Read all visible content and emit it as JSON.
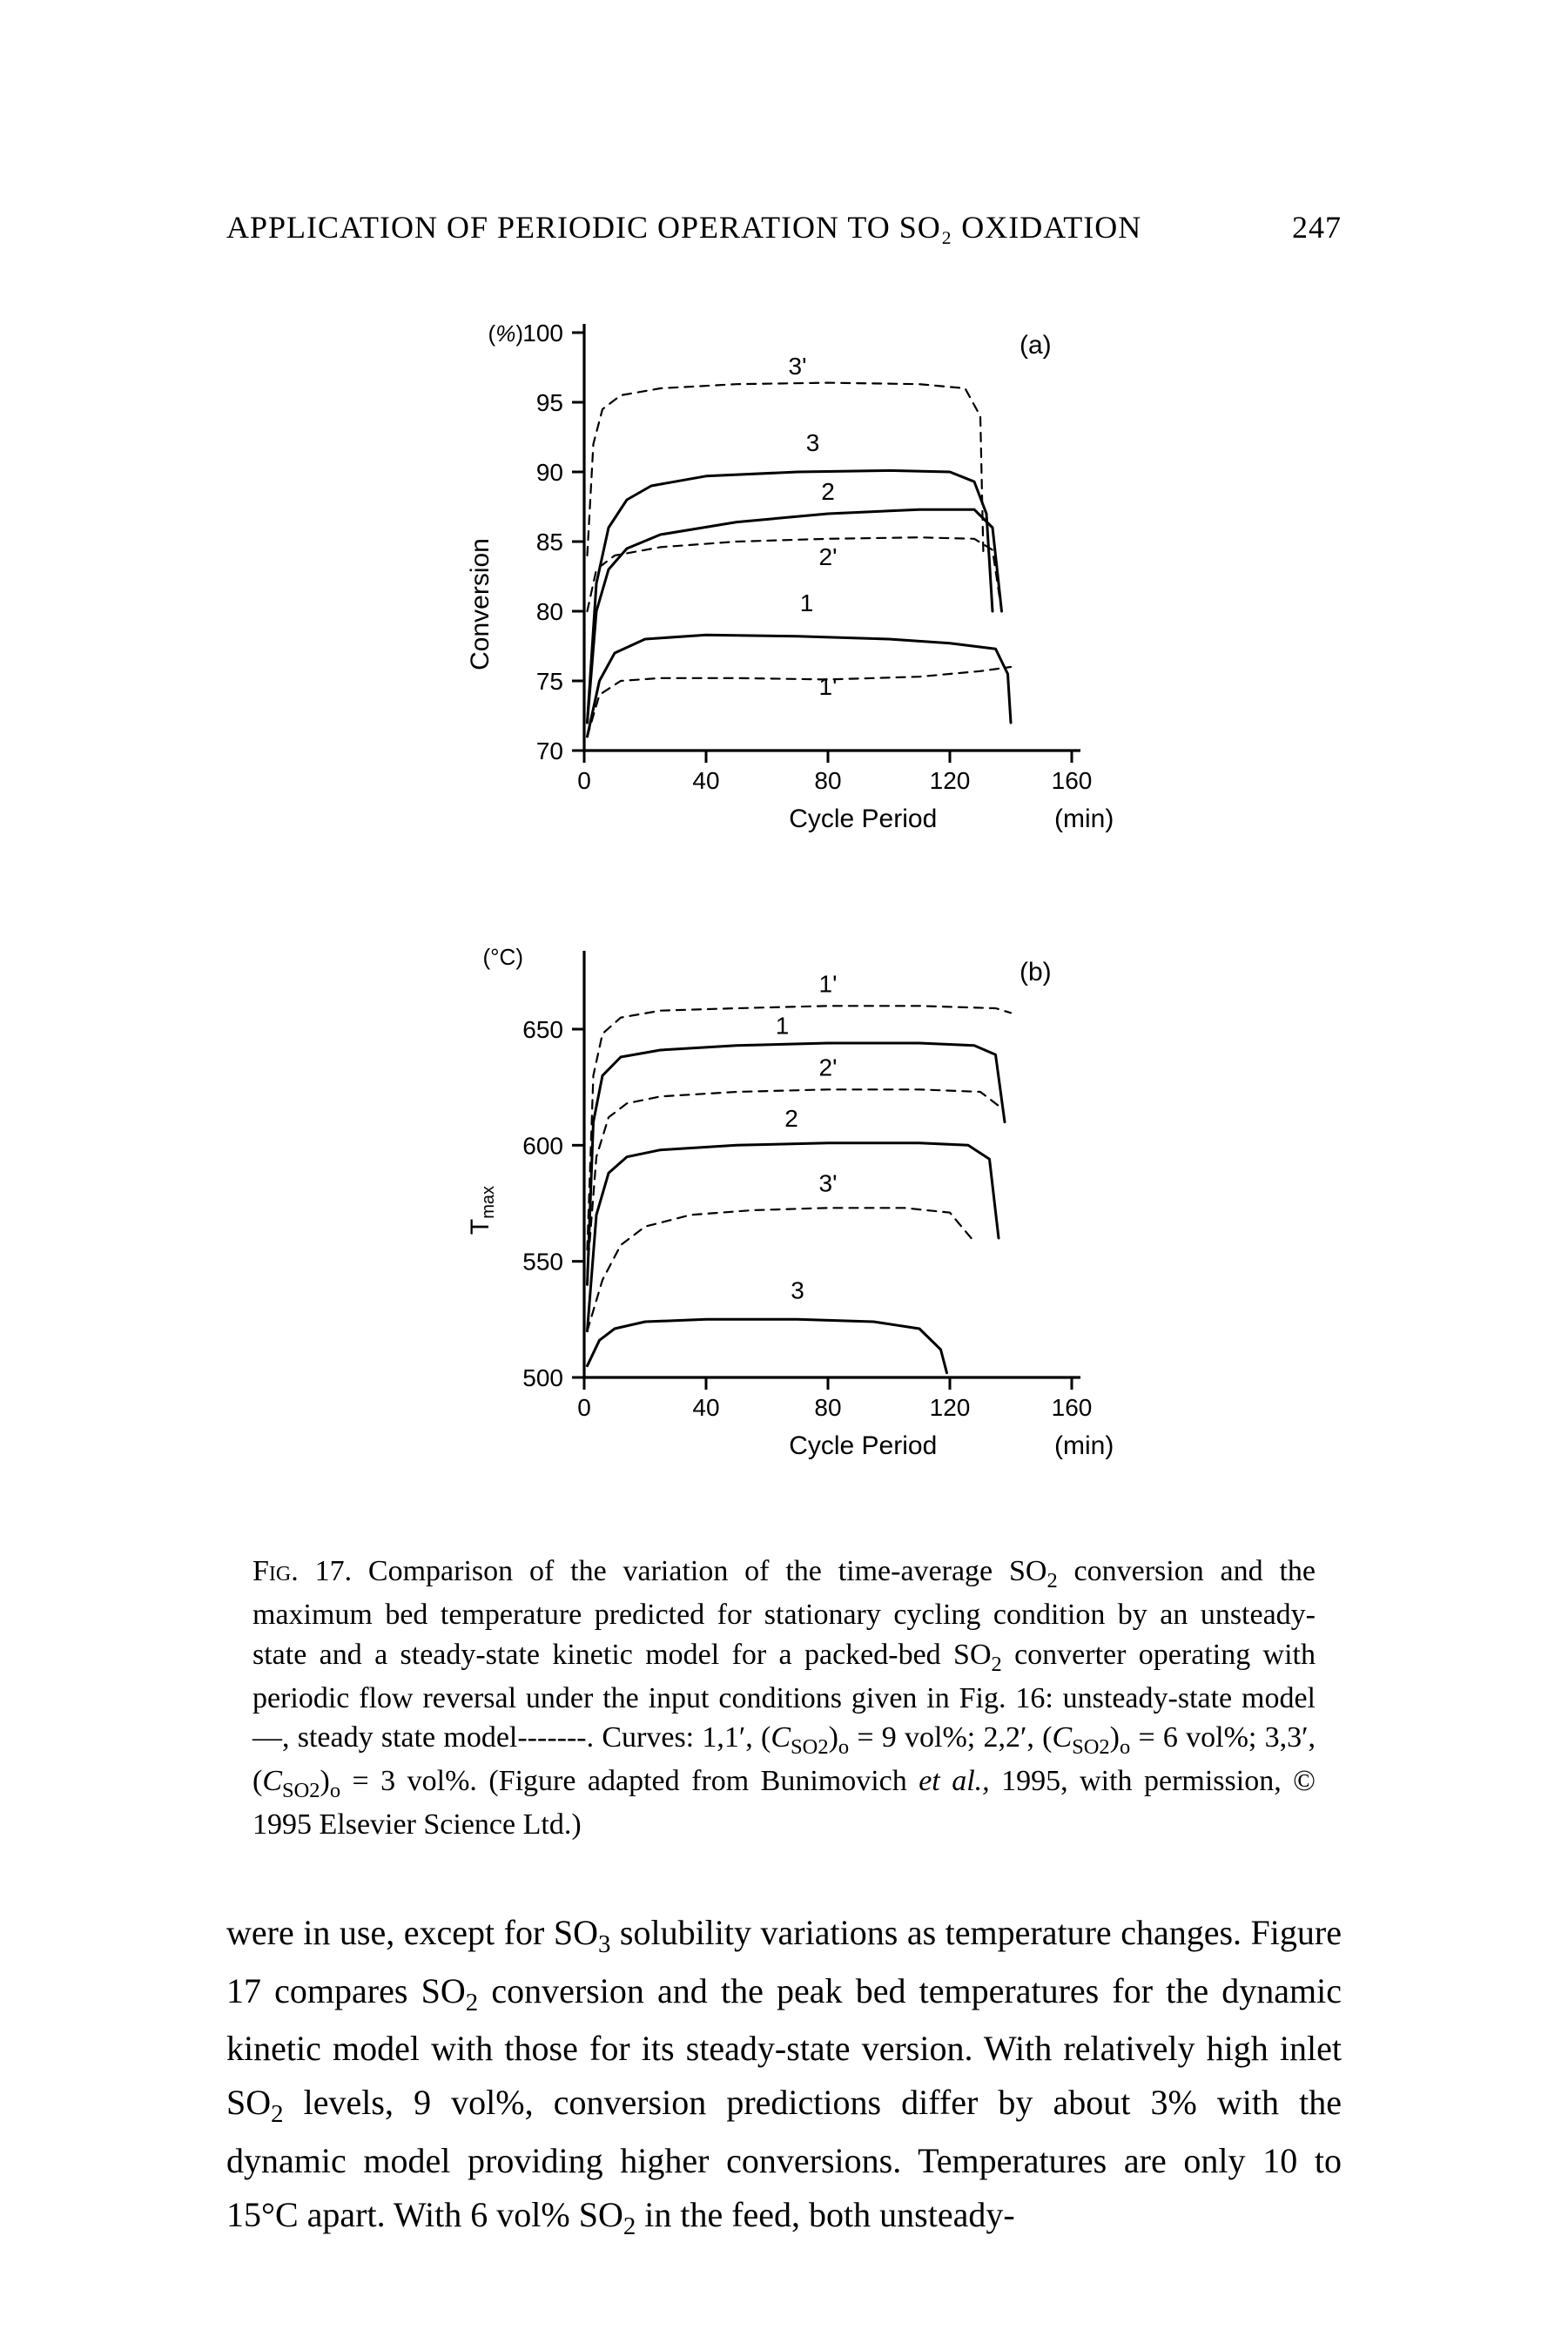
{
  "header": {
    "title": "APPLICATION OF PERIODIC OPERATION TO SO₂ OXIDATION",
    "page_number": "247"
  },
  "figure": {
    "chart_a": {
      "type": "line",
      "panel_label": "(a)",
      "ylabel_main": "Conversion",
      "ylabel_unit": "(%)",
      "xlabel_main": "Cycle Period",
      "xlabel_unit": "(min)",
      "xlim": [
        0,
        160
      ],
      "ylim": [
        70,
        100
      ],
      "xticks": [
        0,
        40,
        80,
        120,
        160
      ],
      "yticks": [
        70,
        75,
        80,
        85,
        90,
        95,
        100
      ],
      "line_color": "#000000",
      "background_color": "#ffffff",
      "solid_width": 3.0,
      "dashed_width": 2.2,
      "dash_pattern": "10 8",
      "label_fontsize": 28,
      "tick_fontsize": 28,
      "series": [
        {
          "name": "3'",
          "style": "dashed",
          "label_at": [
            70,
            97
          ],
          "points": [
            [
              1,
              84
            ],
            [
              3,
              92
            ],
            [
              6,
              94.5
            ],
            [
              12,
              95.5
            ],
            [
              25,
              96
            ],
            [
              50,
              96.3
            ],
            [
              80,
              96.4
            ],
            [
              110,
              96.3
            ],
            [
              125,
              96.0
            ],
            [
              130,
              94
            ],
            [
              131,
              84
            ]
          ]
        },
        {
          "name": "3",
          "style": "solid",
          "label_at": [
            75,
            91.5
          ],
          "points": [
            [
              1,
              72
            ],
            [
              4,
              82
            ],
            [
              8,
              86
            ],
            [
              14,
              88
            ],
            [
              22,
              89
            ],
            [
              40,
              89.7
            ],
            [
              70,
              90
            ],
            [
              100,
              90.1
            ],
            [
              120,
              90
            ],
            [
              128,
              89.3
            ],
            [
              132,
              87
            ],
            [
              134,
              80
            ]
          ]
        },
        {
          "name": "2",
          "style": "solid",
          "label_at": [
            80,
            88
          ],
          "points": [
            [
              1,
              72
            ],
            [
              4,
              80
            ],
            [
              8,
              83
            ],
            [
              14,
              84.5
            ],
            [
              25,
              85.5
            ],
            [
              50,
              86.4
            ],
            [
              80,
              87
            ],
            [
              110,
              87.3
            ],
            [
              128,
              87.3
            ],
            [
              134,
              86
            ],
            [
              137,
              80
            ]
          ]
        },
        {
          "name": "2'",
          "style": "dashed",
          "label_at": [
            80,
            83.3
          ],
          "points": [
            [
              1,
              80
            ],
            [
              4,
              83
            ],
            [
              10,
              84
            ],
            [
              25,
              84.6
            ],
            [
              50,
              85
            ],
            [
              80,
              85.2
            ],
            [
              110,
              85.3
            ],
            [
              128,
              85.2
            ],
            [
              134,
              84.4
            ],
            [
              137,
              80
            ]
          ]
        },
        {
          "name": "1",
          "style": "solid",
          "label_at": [
            73,
            80
          ],
          "points": [
            [
              1,
              71
            ],
            [
              5,
              75
            ],
            [
              10,
              77
            ],
            [
              20,
              78
            ],
            [
              40,
              78.3
            ],
            [
              70,
              78.2
            ],
            [
              100,
              78
            ],
            [
              120,
              77.7
            ],
            [
              135,
              77.3
            ],
            [
              139,
              75.5
            ],
            [
              140,
              72
            ]
          ]
        },
        {
          "name": "1'",
          "style": "dashed",
          "label_at": [
            80,
            74
          ],
          "points": [
            [
              1,
              71
            ],
            [
              5,
              74
            ],
            [
              12,
              75
            ],
            [
              25,
              75.2
            ],
            [
              50,
              75.2
            ],
            [
              80,
              75.1
            ],
            [
              110,
              75.3
            ],
            [
              130,
              75.7
            ],
            [
              140,
              76
            ]
          ]
        }
      ]
    },
    "chart_b": {
      "type": "line",
      "panel_label": "(b)",
      "ylabel_main": "T",
      "ylabel_sub": "max",
      "ylabel_unit": "(°C)",
      "xlabel_main": "Cycle Period",
      "xlabel_unit": "(min)",
      "xlim": [
        0,
        160
      ],
      "ylim": [
        500,
        680
      ],
      "xticks": [
        0,
        40,
        80,
        120,
        160
      ],
      "yticks": [
        500,
        550,
        600,
        650
      ],
      "line_color": "#000000",
      "background_color": "#ffffff",
      "solid_width": 3.0,
      "dashed_width": 2.2,
      "dash_pattern": "10 8",
      "label_fontsize": 28,
      "tick_fontsize": 28,
      "series": [
        {
          "name": "1'",
          "style": "dashed",
          "label_at": [
            80,
            666
          ],
          "points": [
            [
              1,
              555
            ],
            [
              3,
              630
            ],
            [
              6,
              648
            ],
            [
              12,
              655
            ],
            [
              25,
              658
            ],
            [
              50,
              659
            ],
            [
              80,
              660
            ],
            [
              110,
              660
            ],
            [
              135,
              659
            ],
            [
              140,
              657
            ]
          ]
        },
        {
          "name": "1",
          "style": "solid",
          "label_at": [
            65,
            648
          ],
          "points": [
            [
              1,
              540
            ],
            [
              3,
              610
            ],
            [
              6,
              630
            ],
            [
              12,
              638
            ],
            [
              25,
              641
            ],
            [
              50,
              643
            ],
            [
              80,
              644
            ],
            [
              110,
              644
            ],
            [
              128,
              643
            ],
            [
              135,
              639
            ],
            [
              138,
              610
            ]
          ]
        },
        {
          "name": "2'",
          "style": "dashed",
          "label_at": [
            80,
            630
          ],
          "points": [
            [
              1,
              545
            ],
            [
              4,
              595
            ],
            [
              8,
              612
            ],
            [
              14,
              618
            ],
            [
              25,
              621
            ],
            [
              50,
              623
            ],
            [
              80,
              624
            ],
            [
              110,
              624
            ],
            [
              130,
              623
            ],
            [
              137,
              616
            ]
          ]
        },
        {
          "name": "2",
          "style": "solid",
          "label_at": [
            68,
            608
          ],
          "points": [
            [
              1,
              520
            ],
            [
              4,
              570
            ],
            [
              8,
              588
            ],
            [
              14,
              595
            ],
            [
              25,
              598
            ],
            [
              50,
              600
            ],
            [
              80,
              601
            ],
            [
              110,
              601
            ],
            [
              126,
              600
            ],
            [
              133,
              594
            ],
            [
              136,
              560
            ]
          ]
        },
        {
          "name": "3'",
          "style": "dashed",
          "label_at": [
            80,
            580
          ],
          "points": [
            [
              1,
              520
            ],
            [
              6,
              542
            ],
            [
              12,
              557
            ],
            [
              20,
              565
            ],
            [
              35,
              570
            ],
            [
              55,
              572
            ],
            [
              80,
              573
            ],
            [
              105,
              573
            ],
            [
              120,
              571
            ],
            [
              127,
              560
            ]
          ]
        },
        {
          "name": "3",
          "style": "solid",
          "label_at": [
            70,
            534
          ],
          "points": [
            [
              1,
              505
            ],
            [
              5,
              516
            ],
            [
              10,
              521
            ],
            [
              20,
              524
            ],
            [
              40,
              525
            ],
            [
              70,
              525
            ],
            [
              95,
              524
            ],
            [
              110,
              521
            ],
            [
              117,
              512
            ],
            [
              119,
              502
            ]
          ]
        }
      ]
    }
  },
  "caption": {
    "lead": "Fig. 17.",
    "text_parts": {
      "p1": "Comparison of the variation of the time-average SO",
      "p1sub": "2",
      "p2": " conversion and the maximum bed temperature predicted for stationary cycling condition by an unsteady-state and a steady-state kinetic model for a packed-bed SO",
      "p2sub": "2",
      "p3": " converter operating with periodic flow reversal under the input conditions given in Fig. 16: unsteady-state model—, steady state model-------. Curves: 1,1′, (",
      "c1": "C",
      "c1sub": "SO2",
      "p4": ")",
      "p4sub": "o",
      "p5": " = 9 vol%; 2,2′, (",
      "c2": "C",
      "c2sub": "SO2",
      "p6": ")",
      "p6sub": "o",
      "p7": " = 6 vol%; 3,3′, (",
      "c3": "C",
      "c3sub": "SO2",
      "p8": ")",
      "p8sub": "o",
      "p9": " = 3 vol%. (Figure adapted from Bunimovich ",
      "etal": "et al.,",
      "p10": " 1995, with permission, © 1995 Elsevier Science Ltd.)"
    }
  },
  "body": {
    "parts": {
      "a": "were in use, except for SO",
      "a_sub": "3",
      "b": " solubility variations as temperature changes. Figure 17 compares SO",
      "b_sub": "2",
      "c": " conversion and the peak bed temperatures for the dynamic kinetic model with those for its steady-state version. With relatively high inlet SO",
      "c_sub": "2",
      "d": " levels, 9 vol%, conversion predictions differ by about 3% with the dynamic model providing higher conversions. Temperatures are only 10 to 15°C apart. With 6 vol% SO",
      "d_sub": "2",
      "e": " in the feed, both unsteady-"
    }
  }
}
